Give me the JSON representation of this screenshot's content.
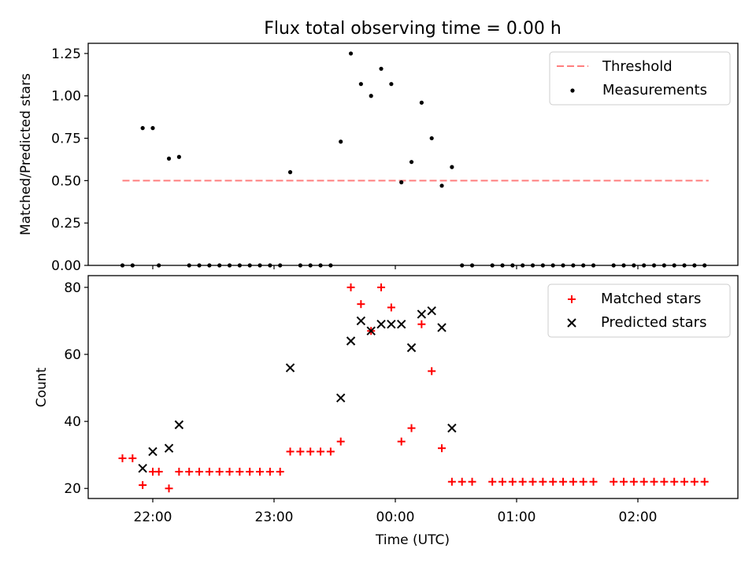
{
  "chart_data": [
    {
      "type": "scatter",
      "title": "Flux total observing time = 0.00 h",
      "xlabel": "",
      "ylabel": "Matched/Predicted stars",
      "ylim": [
        0,
        1.31
      ],
      "yticks": [
        "0.00",
        "0.25",
        "0.50",
        "0.75",
        "1.00",
        "1.25"
      ],
      "legend_position": "top-right",
      "threshold": {
        "name": "Threshold",
        "value": 0.5,
        "x_range": [
          "21:45",
          "02:35"
        ],
        "color": "#ff7f7f",
        "style": "dashed"
      },
      "series": [
        {
          "name": "Measurements",
          "color": "#000000",
          "marker": "dot",
          "points": [
            [
              "21:45",
              0.0
            ],
            [
              "21:50",
              0.0
            ],
            [
              "21:55",
              0.81
            ],
            [
              "22:00",
              0.81
            ],
            [
              "22:03",
              0.0
            ],
            [
              "22:08",
              0.63
            ],
            [
              "22:13",
              0.64
            ],
            [
              "22:18",
              0.0
            ],
            [
              "22:23",
              0.0
            ],
            [
              "22:28",
              0.0
            ],
            [
              "22:33",
              0.0
            ],
            [
              "22:38",
              0.0
            ],
            [
              "22:43",
              0.0
            ],
            [
              "22:48",
              0.0
            ],
            [
              "22:53",
              0.0
            ],
            [
              "22:58",
              0.0
            ],
            [
              "23:03",
              0.0
            ],
            [
              "23:08",
              0.55
            ],
            [
              "23:13",
              0.0
            ],
            [
              "23:18",
              0.0
            ],
            [
              "23:23",
              0.0
            ],
            [
              "23:28",
              0.0
            ],
            [
              "23:33",
              0.73
            ],
            [
              "23:38",
              1.25
            ],
            [
              "23:43",
              1.07
            ],
            [
              "23:48",
              1.0
            ],
            [
              "23:53",
              1.16
            ],
            [
              "23:58",
              1.07
            ],
            [
              "00:03",
              0.49
            ],
            [
              "00:08",
              0.61
            ],
            [
              "00:13",
              0.96
            ],
            [
              "00:18",
              0.75
            ],
            [
              "00:23",
              0.47
            ],
            [
              "00:28",
              0.58
            ],
            [
              "00:33",
              0.0
            ],
            [
              "00:38",
              0.0
            ],
            [
              "00:48",
              0.0
            ],
            [
              "00:53",
              0.0
            ],
            [
              "00:58",
              0.0
            ],
            [
              "01:03",
              0.0
            ],
            [
              "01:08",
              0.0
            ],
            [
              "01:13",
              0.0
            ],
            [
              "01:18",
              0.0
            ],
            [
              "01:23",
              0.0
            ],
            [
              "01:28",
              0.0
            ],
            [
              "01:33",
              0.0
            ],
            [
              "01:38",
              0.0
            ],
            [
              "01:48",
              0.0
            ],
            [
              "01:53",
              0.0
            ],
            [
              "01:58",
              0.0
            ],
            [
              "02:03",
              0.0
            ],
            [
              "02:08",
              0.0
            ],
            [
              "02:13",
              0.0
            ],
            [
              "02:18",
              0.0
            ],
            [
              "02:23",
              0.0
            ],
            [
              "02:28",
              0.0
            ],
            [
              "02:33",
              0.0
            ]
          ]
        }
      ]
    },
    {
      "type": "scatter",
      "title": "",
      "xlabel": "Time (UTC)",
      "ylabel": "Count",
      "ylim": [
        17,
        83.5
      ],
      "yticks": [
        "20",
        "40",
        "60",
        "80"
      ],
      "xticks": [
        "22:00",
        "23:00",
        "00:00",
        "01:00",
        "02:00"
      ],
      "legend_position": "top-right",
      "series": [
        {
          "name": "Matched stars",
          "color": "#ff0000",
          "marker": "plus",
          "points": [
            [
              "21:45",
              29
            ],
            [
              "21:50",
              29
            ],
            [
              "21:55",
              21
            ],
            [
              "22:00",
              25
            ],
            [
              "22:03",
              25
            ],
            [
              "22:08",
              20
            ],
            [
              "22:13",
              25
            ],
            [
              "22:18",
              25
            ],
            [
              "22:23",
              25
            ],
            [
              "22:28",
              25
            ],
            [
              "22:33",
              25
            ],
            [
              "22:38",
              25
            ],
            [
              "22:43",
              25
            ],
            [
              "22:48",
              25
            ],
            [
              "22:53",
              25
            ],
            [
              "22:58",
              25
            ],
            [
              "23:03",
              25
            ],
            [
              "23:08",
              31
            ],
            [
              "23:13",
              31
            ],
            [
              "23:18",
              31
            ],
            [
              "23:23",
              31
            ],
            [
              "23:28",
              31
            ],
            [
              "23:33",
              34
            ],
            [
              "23:38",
              80
            ],
            [
              "23:43",
              75
            ],
            [
              "23:48",
              67
            ],
            [
              "23:53",
              80
            ],
            [
              "23:58",
              74
            ],
            [
              "00:03",
              34
            ],
            [
              "00:08",
              38
            ],
            [
              "00:13",
              69
            ],
            [
              "00:18",
              55
            ],
            [
              "00:23",
              32
            ],
            [
              "00:28",
              22
            ],
            [
              "00:33",
              22
            ],
            [
              "00:38",
              22
            ],
            [
              "00:48",
              22
            ],
            [
              "00:53",
              22
            ],
            [
              "00:58",
              22
            ],
            [
              "01:03",
              22
            ],
            [
              "01:08",
              22
            ],
            [
              "01:13",
              22
            ],
            [
              "01:18",
              22
            ],
            [
              "01:23",
              22
            ],
            [
              "01:28",
              22
            ],
            [
              "01:33",
              22
            ],
            [
              "01:38",
              22
            ],
            [
              "01:48",
              22
            ],
            [
              "01:53",
              22
            ],
            [
              "01:58",
              22
            ],
            [
              "02:03",
              22
            ],
            [
              "02:08",
              22
            ],
            [
              "02:13",
              22
            ],
            [
              "02:18",
              22
            ],
            [
              "02:23",
              22
            ],
            [
              "02:28",
              22
            ],
            [
              "02:33",
              22
            ]
          ]
        },
        {
          "name": "Predicted stars",
          "color": "#000000",
          "marker": "x",
          "points": [
            [
              "21:55",
              26
            ],
            [
              "22:00",
              31
            ],
            [
              "22:08",
              32
            ],
            [
              "22:13",
              39
            ],
            [
              "23:08",
              56
            ],
            [
              "23:33",
              47
            ],
            [
              "23:38",
              64
            ],
            [
              "23:43",
              70
            ],
            [
              "23:48",
              67
            ],
            [
              "23:53",
              69
            ],
            [
              "23:58",
              69
            ],
            [
              "00:03",
              69
            ],
            [
              "00:08",
              62
            ],
            [
              "00:13",
              72
            ],
            [
              "00:18",
              73
            ],
            [
              "00:23",
              68
            ],
            [
              "00:28",
              38
            ]
          ]
        }
      ]
    }
  ]
}
